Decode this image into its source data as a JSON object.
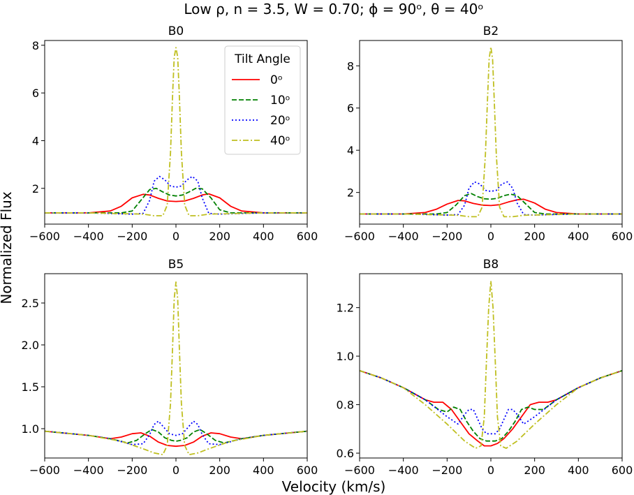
{
  "figure": {
    "title": "Low ρ, n = 3.5, W = 0.70; ϕ = 90ᵒ, θ = 40ᵒ",
    "xlabel": "Velocity (km/s)",
    "ylabel": "Normalized Flux"
  },
  "legend": {
    "title": "Tilt Angle",
    "entries": [
      "0ᵒ",
      "10ᵒ",
      "20ᵒ",
      "40ᵒ"
    ]
  },
  "chart_data": [
    {
      "type": "line",
      "title": "B0",
      "xlim": [
        -600,
        600
      ],
      "ylim": [
        0.5,
        8.2
      ],
      "xticks": [
        -600,
        -400,
        -200,
        0,
        200,
        400,
        600
      ],
      "yticks": [
        2,
        4,
        6,
        8
      ],
      "legend_position": "top-right",
      "series": [
        {
          "name": "0ᵒ",
          "color": "#ff0000",
          "dash": "solid",
          "x": [
            -600,
            -400,
            -300,
            -250,
            -200,
            -150,
            -120,
            -80,
            -40,
            0,
            40,
            80,
            120,
            150,
            200,
            250,
            300,
            400,
            600
          ],
          "y": [
            0.97,
            0.97,
            1.05,
            1.25,
            1.6,
            1.75,
            1.72,
            1.58,
            1.47,
            1.45,
            1.47,
            1.58,
            1.72,
            1.77,
            1.6,
            1.25,
            1.05,
            0.97,
            0.97
          ]
        },
        {
          "name": "10ᵒ",
          "color": "#008000",
          "dash": "dashed",
          "x": [
            -600,
            -400,
            -250,
            -200,
            -160,
            -120,
            -90,
            -60,
            -30,
            0,
            30,
            60,
            90,
            120,
            160,
            200,
            250,
            400,
            600
          ],
          "y": [
            0.97,
            0.97,
            0.97,
            1.05,
            1.5,
            1.95,
            2.0,
            1.85,
            1.72,
            1.68,
            1.72,
            1.85,
            2.0,
            1.98,
            1.6,
            1.1,
            0.97,
            0.97,
            0.97
          ]
        },
        {
          "name": "20ᵒ",
          "color": "#0000ff",
          "dash": "dotted",
          "x": [
            -600,
            -400,
            -200,
            -150,
            -120,
            -100,
            -75,
            -50,
            -25,
            0,
            25,
            50,
            75,
            100,
            120,
            150,
            200,
            400,
            600
          ],
          "y": [
            0.97,
            0.97,
            0.92,
            0.95,
            1.5,
            2.3,
            2.5,
            2.35,
            2.1,
            2.05,
            2.1,
            2.35,
            2.5,
            2.3,
            1.6,
            0.95,
            0.92,
            0.97,
            0.97
          ]
        },
        {
          "name": "40ᵒ",
          "color": "#bfbf20",
          "dash": "dashdot",
          "x": [
            -600,
            -400,
            -150,
            -100,
            -60,
            -40,
            -25,
            -15,
            -8,
            0,
            8,
            15,
            25,
            40,
            60,
            100,
            150,
            400,
            600
          ],
          "y": [
            0.97,
            0.97,
            0.92,
            0.85,
            0.85,
            1.3,
            3.5,
            6.0,
            7.5,
            7.9,
            7.5,
            6.0,
            3.5,
            1.3,
            0.85,
            0.85,
            0.92,
            0.97,
            0.97
          ]
        }
      ]
    },
    {
      "type": "line",
      "title": "B2",
      "xlim": [
        -600,
        600
      ],
      "ylim": [
        0.5,
        9.2
      ],
      "xticks": [
        -600,
        -400,
        -200,
        0,
        200,
        400,
        600
      ],
      "yticks": [
        2,
        4,
        6,
        8
      ],
      "series": [
        {
          "name": "0ᵒ",
          "color": "#ff0000",
          "dash": "solid",
          "x": [
            -600,
            -400,
            -300,
            -250,
            -200,
            -150,
            -120,
            -80,
            -40,
            0,
            40,
            80,
            120,
            150,
            200,
            250,
            300,
            400,
            600
          ],
          "y": [
            0.98,
            0.98,
            1.05,
            1.2,
            1.45,
            1.62,
            1.6,
            1.48,
            1.4,
            1.38,
            1.42,
            1.55,
            1.65,
            1.68,
            1.5,
            1.2,
            1.05,
            0.98,
            0.98
          ]
        },
        {
          "name": "10ᵒ",
          "color": "#008000",
          "dash": "dashed",
          "x": [
            -600,
            -400,
            -250,
            -200,
            -160,
            -120,
            -90,
            -60,
            -30,
            0,
            30,
            60,
            90,
            120,
            160,
            200,
            250,
            400,
            600
          ],
          "y": [
            0.98,
            0.98,
            0.98,
            1.05,
            1.4,
            1.85,
            1.95,
            1.8,
            1.7,
            1.68,
            1.72,
            1.85,
            1.92,
            1.85,
            1.45,
            1.05,
            0.98,
            0.98,
            0.98
          ]
        },
        {
          "name": "20ᵒ",
          "color": "#0000ff",
          "dash": "dotted",
          "x": [
            -600,
            -400,
            -200,
            -150,
            -120,
            -100,
            -75,
            -50,
            -25,
            0,
            25,
            50,
            75,
            100,
            120,
            150,
            200,
            400,
            600
          ],
          "y": [
            0.98,
            0.98,
            0.93,
            0.95,
            1.4,
            2.2,
            2.5,
            2.4,
            2.1,
            2.05,
            2.1,
            2.4,
            2.5,
            2.2,
            1.5,
            0.95,
            0.93,
            0.98,
            0.98
          ]
        },
        {
          "name": "40ᵒ",
          "color": "#bfbf20",
          "dash": "dashdot",
          "x": [
            -600,
            -400,
            -150,
            -100,
            -60,
            -40,
            -25,
            -15,
            -8,
            0,
            8,
            15,
            25,
            40,
            60,
            100,
            150,
            400,
            600
          ],
          "y": [
            0.98,
            0.98,
            0.92,
            0.85,
            0.85,
            1.3,
            3.8,
            6.5,
            8.3,
            8.9,
            8.3,
            6.5,
            3.8,
            1.3,
            0.85,
            0.85,
            0.92,
            0.98,
            0.98
          ]
        }
      ]
    },
    {
      "type": "line",
      "title": "B5",
      "xlim": [
        -600,
        600
      ],
      "ylim": [
        0.65,
        2.85
      ],
      "xticks": [
        -600,
        -400,
        -200,
        0,
        200,
        400,
        600
      ],
      "yticks": [
        1.0,
        1.5,
        2.0,
        2.5
      ],
      "series": [
        {
          "name": "0ᵒ",
          "color": "#ff0000",
          "dash": "solid",
          "x": [
            -600,
            -400,
            -300,
            -250,
            -200,
            -160,
            -120,
            -80,
            -40,
            0,
            40,
            80,
            120,
            160,
            200,
            250,
            300,
            400,
            600
          ],
          "y": [
            0.97,
            0.92,
            0.88,
            0.9,
            0.94,
            0.95,
            0.91,
            0.84,
            0.8,
            0.79,
            0.8,
            0.84,
            0.91,
            0.95,
            0.94,
            0.9,
            0.88,
            0.92,
            0.97
          ]
        },
        {
          "name": "10ᵒ",
          "color": "#008000",
          "dash": "dashed",
          "x": [
            -600,
            -400,
            -300,
            -220,
            -180,
            -140,
            -110,
            -80,
            -50,
            -20,
            0,
            20,
            50,
            80,
            110,
            140,
            180,
            220,
            300,
            400,
            600
          ],
          "y": [
            0.97,
            0.92,
            0.88,
            0.83,
            0.86,
            0.94,
            0.99,
            0.96,
            0.89,
            0.86,
            0.85,
            0.86,
            0.89,
            0.96,
            0.99,
            0.94,
            0.86,
            0.83,
            0.88,
            0.92,
            0.97
          ]
        },
        {
          "name": "20ᵒ",
          "color": "#0000ff",
          "dash": "dotted",
          "x": [
            -600,
            -400,
            -300,
            -200,
            -150,
            -120,
            -100,
            -80,
            -60,
            -30,
            0,
            30,
            60,
            80,
            100,
            120,
            150,
            200,
            300,
            400,
            600
          ],
          "y": [
            0.97,
            0.92,
            0.88,
            0.81,
            0.82,
            0.93,
            1.05,
            1.09,
            1.03,
            0.94,
            0.92,
            0.94,
            1.03,
            1.09,
            1.05,
            0.93,
            0.82,
            0.81,
            0.88,
            0.92,
            0.97
          ]
        },
        {
          "name": "40ᵒ",
          "color": "#bfbf20",
          "dash": "dashdot",
          "x": [
            -600,
            -400,
            -250,
            -150,
            -100,
            -60,
            -40,
            -25,
            -15,
            -8,
            0,
            8,
            15,
            25,
            40,
            60,
            100,
            150,
            250,
            400,
            600
          ],
          "y": [
            0.97,
            0.92,
            0.85,
            0.76,
            0.71,
            0.69,
            0.8,
            1.3,
            2.0,
            2.55,
            2.75,
            2.55,
            2.0,
            1.3,
            0.8,
            0.69,
            0.71,
            0.76,
            0.85,
            0.92,
            0.97
          ]
        }
      ]
    },
    {
      "type": "line",
      "title": "B8",
      "xlim": [
        -600,
        600
      ],
      "ylim": [
        0.58,
        1.34
      ],
      "xticks": [
        -600,
        -400,
        -200,
        0,
        200,
        400,
        600
      ],
      "yticks": [
        0.6,
        0.8,
        1.0,
        1.2
      ],
      "series": [
        {
          "name": "0ᵒ",
          "color": "#ff0000",
          "dash": "solid",
          "x": [
            -600,
            -500,
            -400,
            -300,
            -260,
            -220,
            -180,
            -140,
            -100,
            -60,
            -30,
            0,
            30,
            60,
            100,
            140,
            180,
            220,
            260,
            300,
            400,
            500,
            600
          ],
          "y": [
            0.94,
            0.91,
            0.87,
            0.82,
            0.81,
            0.81,
            0.78,
            0.73,
            0.68,
            0.65,
            0.63,
            0.63,
            0.64,
            0.66,
            0.7,
            0.75,
            0.8,
            0.81,
            0.81,
            0.82,
            0.87,
            0.91,
            0.94
          ]
        },
        {
          "name": "10ᵒ",
          "color": "#008000",
          "dash": "dashed",
          "x": [
            -600,
            -500,
            -400,
            -300,
            -240,
            -200,
            -170,
            -140,
            -110,
            -80,
            -50,
            -20,
            0,
            20,
            50,
            80,
            110,
            140,
            170,
            200,
            240,
            300,
            400,
            500,
            600
          ],
          "y": [
            0.94,
            0.91,
            0.87,
            0.82,
            0.78,
            0.77,
            0.79,
            0.78,
            0.73,
            0.69,
            0.66,
            0.65,
            0.65,
            0.65,
            0.66,
            0.69,
            0.73,
            0.78,
            0.79,
            0.78,
            0.78,
            0.82,
            0.87,
            0.91,
            0.94
          ]
        },
        {
          "name": "20ᵒ",
          "color": "#0000ff",
          "dash": "dotted",
          "x": [
            -600,
            -500,
            -400,
            -300,
            -200,
            -150,
            -120,
            -100,
            -80,
            -60,
            -40,
            -20,
            0,
            20,
            40,
            60,
            80,
            100,
            120,
            150,
            200,
            300,
            400,
            500,
            600
          ],
          "y": [
            0.94,
            0.91,
            0.87,
            0.82,
            0.75,
            0.72,
            0.76,
            0.78,
            0.78,
            0.74,
            0.7,
            0.68,
            0.68,
            0.68,
            0.7,
            0.74,
            0.78,
            0.78,
            0.76,
            0.72,
            0.75,
            0.82,
            0.87,
            0.91,
            0.94
          ]
        },
        {
          "name": "40ᵒ",
          "color": "#bfbf20",
          "dash": "dashdot",
          "x": [
            -600,
            -500,
            -400,
            -300,
            -200,
            -120,
            -70,
            -45,
            -30,
            -20,
            -10,
            0,
            10,
            20,
            30,
            45,
            70,
            120,
            200,
            300,
            400,
            500,
            600
          ],
          "y": [
            0.94,
            0.91,
            0.87,
            0.8,
            0.72,
            0.65,
            0.62,
            0.63,
            0.75,
            0.98,
            1.2,
            1.31,
            1.2,
            0.98,
            0.75,
            0.63,
            0.62,
            0.65,
            0.72,
            0.8,
            0.87,
            0.91,
            0.94
          ]
        }
      ]
    }
  ]
}
